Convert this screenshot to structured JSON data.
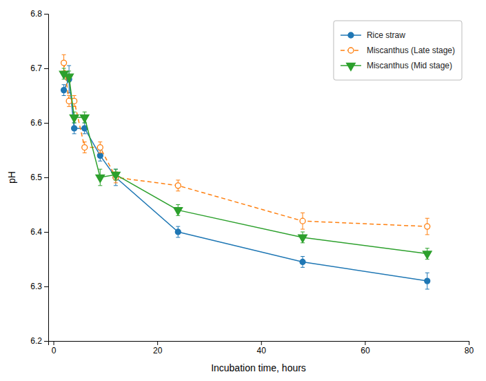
{
  "chart_data": {
    "type": "line",
    "xlabel": "Incubation time, hours",
    "ylabel": "pH",
    "x": [
      2,
      3,
      4,
      6,
      9,
      12,
      24,
      48,
      72
    ],
    "series": [
      {
        "name": "Rice straw",
        "marker": "circle",
        "line_style": "solid",
        "values": [
          6.66,
          6.68,
          6.59,
          6.59,
          6.54,
          6.5,
          6.4,
          6.345,
          6.31
        ],
        "errors": [
          0.01,
          0.025,
          0.01,
          0.01,
          0.01,
          0.015,
          0.01,
          0.01,
          0.015
        ]
      },
      {
        "name": "Miscanthus (Late stage)",
        "marker": "circle-open",
        "line_style": "dashed",
        "values": [
          6.71,
          6.64,
          6.64,
          6.555,
          6.555,
          6.5,
          6.485,
          6.42,
          6.41
        ],
        "errors": [
          0.015,
          0.01,
          0.01,
          0.01,
          0.01,
          0.01,
          0.01,
          0.015,
          0.015
        ]
      },
      {
        "name": "Miscanthus (Mid stage)",
        "marker": "triangle-down",
        "line_style": "solid",
        "values": [
          6.69,
          6.685,
          6.61,
          6.61,
          6.5,
          6.505,
          6.44,
          6.39,
          6.36
        ],
        "errors": [
          0.01,
          0.01,
          0.01,
          0.01,
          0.015,
          0.01,
          0.01,
          0.01,
          0.01
        ]
      }
    ],
    "xlim": [
      -1,
      80
    ],
    "ylim": [
      6.2,
      6.8
    ],
    "xticks": [
      0,
      20,
      40,
      60,
      80
    ],
    "yticks": [
      6.2,
      6.3,
      6.4,
      6.5,
      6.6,
      6.7,
      6.8
    ],
    "legend": "upper-right"
  }
}
